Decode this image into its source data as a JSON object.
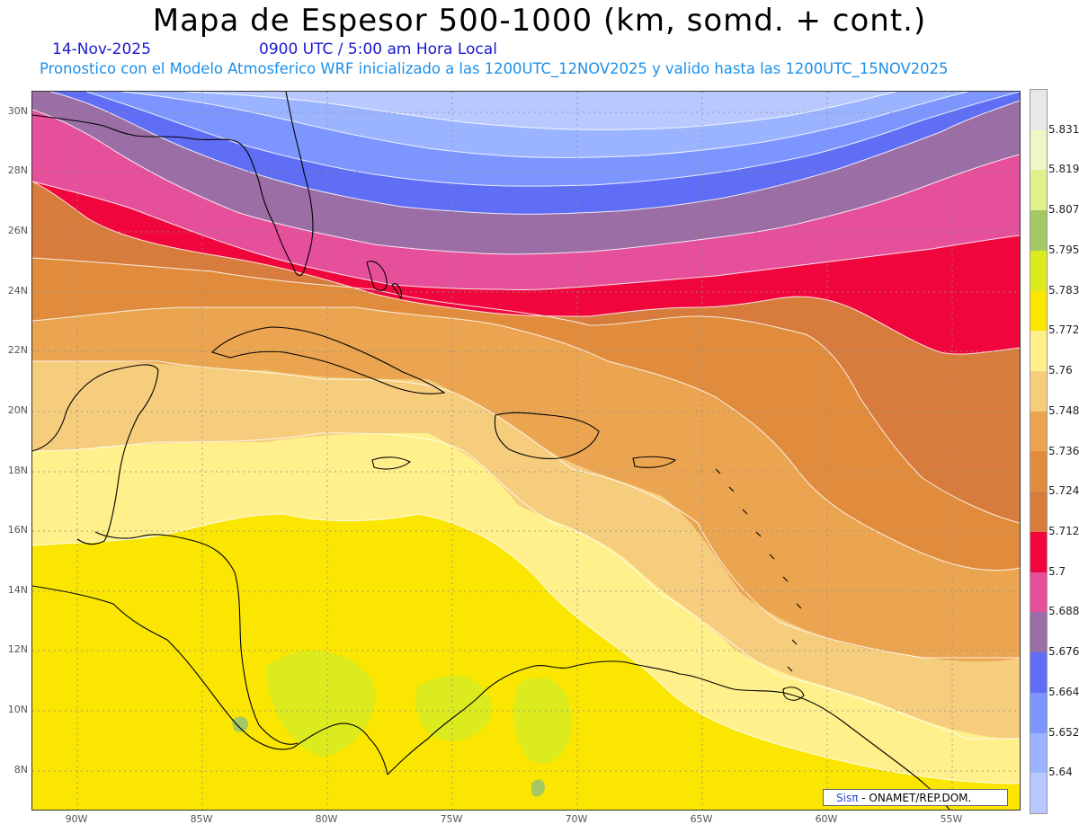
{
  "header": {
    "title": "Mapa de Espesor 500-1000 (km, somd. + cont.)",
    "date": "14-Nov-2025",
    "time": "0900 UTC / 5:00 am Hora Local",
    "model_line": "Pronostico con el Modelo Atmosferico WRF inicializado a las 1200UTC_12NOV2025 y valido hasta las  1200UTC_15NOV2025"
  },
  "map": {
    "lat_labels": [
      "30N",
      "28N",
      "26N",
      "24N",
      "22N",
      "20N",
      "18N",
      "16N",
      "14N",
      "12N",
      "10N",
      "8N"
    ],
    "lon_labels": [
      "90W",
      "85W",
      "80W",
      "75W",
      "70W",
      "65W",
      "60W",
      "55W"
    ]
  },
  "colorbar": {
    "levels": [
      "5.831",
      "5.819",
      "5.807",
      "5.795",
      "5.783",
      "5.772",
      "5.76",
      "5.748",
      "5.736",
      "5.724",
      "5.712",
      "5.7",
      "5.688",
      "5.676",
      "5.664",
      "5.652",
      "5.64"
    ],
    "colors": [
      "#e8e8e8",
      "#f0f6c8",
      "#e0f08c",
      "#a4c864",
      "#dceb1e",
      "#fae600",
      "#fff08c",
      "#f5cd7d",
      "#eba550",
      "#e08c3c",
      "#d77c3c",
      "#f0063c",
      "#e6509b",
      "#9b6ea5",
      "#5f6ef5",
      "#7d96ff",
      "#9bb4ff",
      "#b9c8ff"
    ]
  },
  "credit": {
    "brand": "Sisπ",
    "text": "- ONAMET/REP.DOM."
  }
}
